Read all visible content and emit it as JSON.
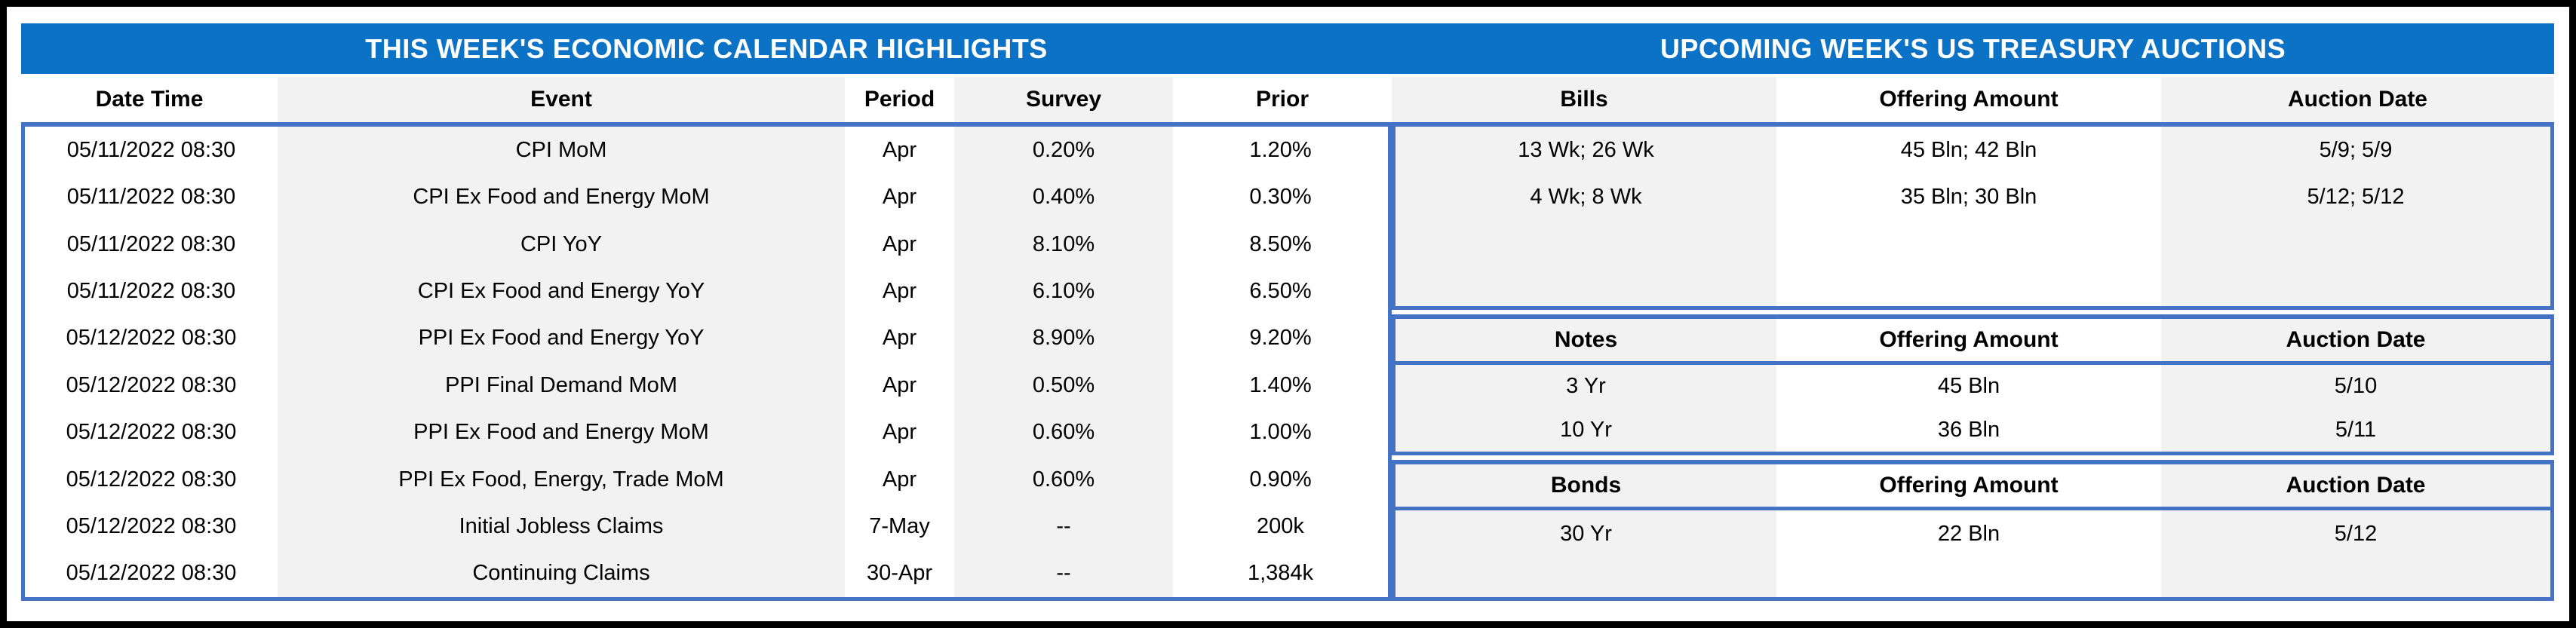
{
  "titles": {
    "left": "THIS WEEK'S ECONOMIC CALENDAR HIGHLIGHTS",
    "right": "UPCOMING WEEK'S US TREASURY AUCTIONS"
  },
  "colors": {
    "title_bar_blue": "#0C72C6",
    "section_border_blue": "#4472C4",
    "stripe_gray": "#F2F2F2",
    "outer_border": "#000000",
    "title_text": "#FFFFFF",
    "body_text": "#000000"
  },
  "calendar": {
    "headers": [
      "Date Time",
      "Event",
      "Period",
      "Survey",
      "Prior"
    ],
    "rows": [
      [
        "05/11/2022 08:30",
        "CPI MoM",
        "Apr",
        "0.20%",
        "1.20%"
      ],
      [
        "05/11/2022 08:30",
        "CPI Ex Food and Energy MoM",
        "Apr",
        "0.40%",
        "0.30%"
      ],
      [
        "05/11/2022 08:30",
        "CPI YoY",
        "Apr",
        "8.10%",
        "8.50%"
      ],
      [
        "05/11/2022 08:30",
        "CPI Ex Food and Energy YoY",
        "Apr",
        "6.10%",
        "6.50%"
      ],
      [
        "05/12/2022 08:30",
        "PPI Ex Food and Energy YoY",
        "Apr",
        "8.90%",
        "9.20%"
      ],
      [
        "05/12/2022 08:30",
        "PPI Final Demand MoM",
        "Apr",
        "0.50%",
        "1.40%"
      ],
      [
        "05/12/2022 08:30",
        "PPI Ex Food and Energy MoM",
        "Apr",
        "0.60%",
        "1.00%"
      ],
      [
        "05/12/2022 08:30",
        "PPI Ex Food, Energy, Trade MoM",
        "Apr",
        "0.60%",
        "0.90%"
      ],
      [
        "05/12/2022 08:30",
        "Initial Jobless Claims",
        "7-May",
        "--",
        "200k"
      ],
      [
        "05/12/2022 08:30",
        "Continuing Claims",
        "30-Apr",
        "--",
        "1,384k"
      ]
    ]
  },
  "auctions": {
    "bills": {
      "headers": [
        "Bills",
        "Offering Amount",
        "Auction Date"
      ],
      "rows": [
        [
          "13 Wk; 26 Wk",
          "45 Bln; 42 Bln",
          "5/9; 5/9"
        ],
        [
          "4 Wk; 8 Wk",
          "35 Bln; 30 Bln",
          "5/12; 5/12"
        ]
      ]
    },
    "notes": {
      "headers": [
        "Notes",
        "Offering Amount",
        "Auction Date"
      ],
      "rows": [
        [
          "3 Yr",
          "45 Bln",
          "5/10"
        ],
        [
          "10 Yr",
          "36 Bln",
          "5/11"
        ]
      ]
    },
    "bonds": {
      "headers": [
        "Bonds",
        "Offering Amount",
        "Auction Date"
      ],
      "rows": [
        [
          "30 Yr",
          "22 Bln",
          "5/12"
        ]
      ]
    }
  }
}
